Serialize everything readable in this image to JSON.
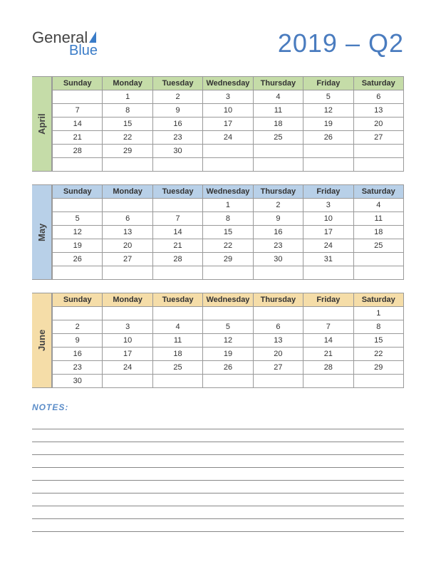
{
  "logo": {
    "word1": "General",
    "word2": "Blue"
  },
  "title": "2019 – Q2",
  "day_headers": [
    "Sunday",
    "Monday",
    "Tuesday",
    "Wednesday",
    "Thursday",
    "Friday",
    "Saturday"
  ],
  "months": [
    {
      "name": "April",
      "header_bg": "#c5dca8",
      "label_bg": "#c5dca8",
      "weeks": [
        [
          "",
          "1",
          "2",
          "3",
          "4",
          "5",
          "6"
        ],
        [
          "7",
          "8",
          "9",
          "10",
          "11",
          "12",
          "13"
        ],
        [
          "14",
          "15",
          "16",
          "17",
          "18",
          "19",
          "20"
        ],
        [
          "21",
          "22",
          "23",
          "24",
          "25",
          "26",
          "27"
        ],
        [
          "28",
          "29",
          "30",
          "",
          "",
          "",
          ""
        ],
        [
          "",
          "",
          "",
          "",
          "",
          "",
          ""
        ]
      ]
    },
    {
      "name": "May",
      "header_bg": "#b8d0e8",
      "label_bg": "#b8d0e8",
      "weeks": [
        [
          "",
          "",
          "",
          "1",
          "2",
          "3",
          "4"
        ],
        [
          "5",
          "6",
          "7",
          "8",
          "9",
          "10",
          "11"
        ],
        [
          "12",
          "13",
          "14",
          "15",
          "16",
          "17",
          "18"
        ],
        [
          "19",
          "20",
          "21",
          "22",
          "23",
          "24",
          "25"
        ],
        [
          "26",
          "27",
          "28",
          "29",
          "30",
          "31",
          ""
        ],
        [
          "",
          "",
          "",
          "",
          "",
          "",
          ""
        ]
      ]
    },
    {
      "name": "June",
      "header_bg": "#f5dda8",
      "label_bg": "#f5dda8",
      "weeks": [
        [
          "",
          "",
          "",
          "",
          "",
          "",
          "1"
        ],
        [
          "2",
          "3",
          "4",
          "5",
          "6",
          "7",
          "8"
        ],
        [
          "9",
          "10",
          "11",
          "12",
          "13",
          "14",
          "15"
        ],
        [
          "16",
          "17",
          "18",
          "19",
          "20",
          "21",
          "22"
        ],
        [
          "23",
          "24",
          "25",
          "26",
          "27",
          "28",
          "29"
        ],
        [
          "30",
          "",
          "",
          "",
          "",
          "",
          ""
        ]
      ]
    }
  ],
  "notes_label": "NOTES:",
  "notes_line_count": 9,
  "colors": {
    "title": "#4a7cbf",
    "border": "#999999",
    "notes_label": "#5a8cc8"
  }
}
